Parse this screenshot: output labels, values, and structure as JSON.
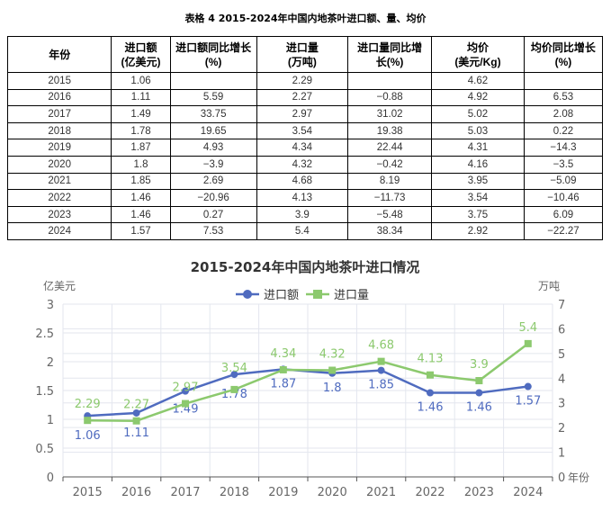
{
  "table": {
    "caption": "表格 4 2015-2024年中国内地茶叶进口额、量、均价",
    "headers": [
      [
        "年份",
        ""
      ],
      [
        "进口额",
        "(亿美元)"
      ],
      [
        "进口额同比增长",
        "(%)"
      ],
      [
        "进口量",
        "(万吨)"
      ],
      [
        "进口量同比增",
        "长(%)"
      ],
      [
        "均价",
        "(美元/Kg)"
      ],
      [
        "均价同比增长",
        "(%)"
      ]
    ],
    "rows": [
      [
        "2015",
        "1.06",
        "",
        "2.29",
        "",
        "4.62",
        ""
      ],
      [
        "2016",
        "1.11",
        "5.59",
        "2.27",
        "−0.88",
        "4.92",
        "6.53"
      ],
      [
        "2017",
        "1.49",
        "33.75",
        "2.97",
        "31.02",
        "5.02",
        "2.08"
      ],
      [
        "2018",
        "1.78",
        "19.65",
        "3.54",
        "19.38",
        "5.03",
        "0.22"
      ],
      [
        "2019",
        "1.87",
        "4.93",
        "4.34",
        "22.44",
        "4.31",
        "−14.3"
      ],
      [
        "2020",
        "1.8",
        "−3.9",
        "4.32",
        "−0.42",
        "4.16",
        "−3.5"
      ],
      [
        "2021",
        "1.85",
        "2.69",
        "4.68",
        "8.19",
        "3.95",
        "−5.09"
      ],
      [
        "2022",
        "1.46",
        "−20.96",
        "4.13",
        "−11.73",
        "3.54",
        "−10.46"
      ],
      [
        "2023",
        "1.46",
        "0.27",
        "3.9",
        "−5.48",
        "3.75",
        "6.09"
      ],
      [
        "2024",
        "1.57",
        "7.53",
        "5.4",
        "38.34",
        "2.92",
        "−22.27"
      ]
    ]
  },
  "chart_data": {
    "type": "line",
    "title": "2015-2024年中国内地茶叶进口情况",
    "categories": [
      "2015",
      "2016",
      "2017",
      "2018",
      "2019",
      "2020",
      "2021",
      "2022",
      "2023",
      "2024"
    ],
    "xlabel": "年份",
    "ylabel": "亿美元",
    "ylim": [
      0,
      3
    ],
    "yticks": [
      "0",
      "0.5",
      "1",
      "1.5",
      "2",
      "2.5",
      "3"
    ],
    "y2label": "万吨",
    "y2lim": [
      0,
      7
    ],
    "y2ticks": [
      "0",
      "1",
      "2",
      "3",
      "4",
      "5",
      "6",
      "7"
    ],
    "grid": true,
    "legend": "top",
    "series": [
      {
        "name": "进口额",
        "axis": "left",
        "color": "#4f6bbf",
        "marker": "circle",
        "values": [
          1.06,
          1.11,
          1.49,
          1.78,
          1.87,
          1.8,
          1.85,
          1.46,
          1.46,
          1.57
        ],
        "labels": [
          "1.06",
          "1.11",
          "1.49",
          "1.78",
          "1.87",
          "1.8",
          "1.85",
          "1.46",
          "1.46",
          "1.57"
        ]
      },
      {
        "name": "进口量",
        "axis": "right",
        "color": "#8cc96e",
        "marker": "square",
        "values": [
          2.29,
          2.27,
          2.97,
          3.54,
          4.34,
          4.32,
          4.68,
          4.13,
          3.9,
          5.4
        ],
        "labels": [
          "2.29",
          "2.27",
          "2.97",
          "3.54",
          "4.34",
          "4.32",
          "4.68",
          "4.13",
          "3.9",
          "5.4"
        ]
      }
    ]
  }
}
